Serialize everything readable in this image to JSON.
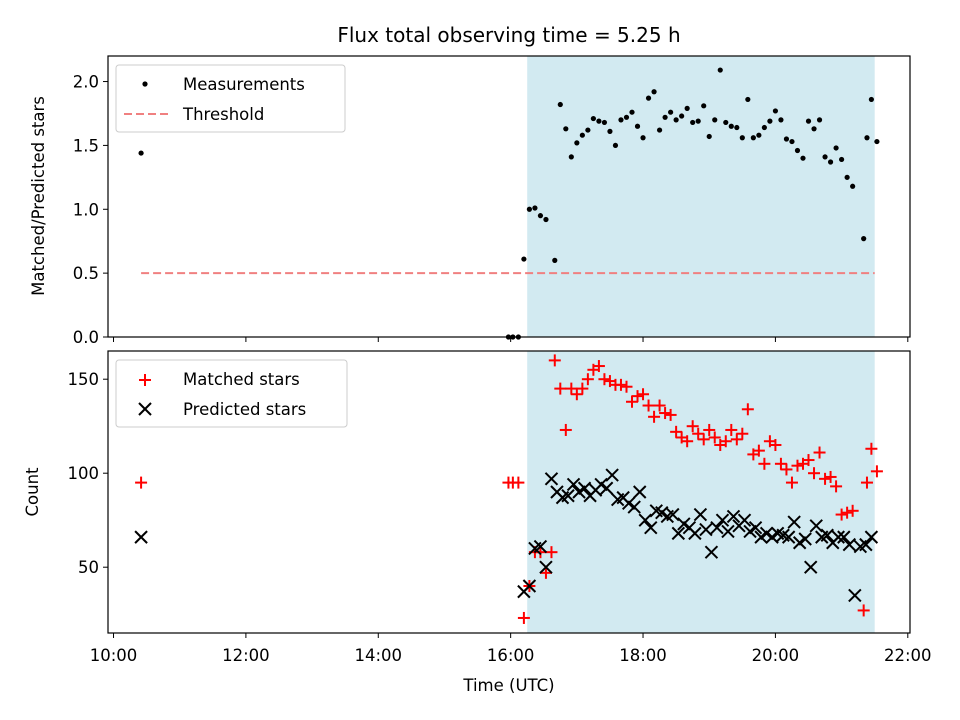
{
  "chart_data": {
    "title": "Flux total observing time = 5.25 h",
    "xlabel": "Time (UTC)",
    "x_tick_labels": [
      "10:00",
      "12:00",
      "14:00",
      "16:00",
      "18:00",
      "20:00",
      "22:00"
    ],
    "x_ticks": [
      "10:00",
      "12:00",
      "14:00",
      "16:00",
      "18:00",
      "20:00",
      "22:00"
    ],
    "xlim": [
      "09:55",
      "22:02"
    ],
    "observing_window": {
      "start": "16:15",
      "end": "21:30",
      "color": "#add8e6"
    },
    "panels": [
      {
        "type": "scatter",
        "ylabel": "Matched/Predicted stars",
        "ylim": [
          0,
          2.2
        ],
        "y_ticks": [
          "0.0",
          "0.5",
          "1.0",
          "1.5",
          "2.0"
        ],
        "legend": {
          "placement": "upper-left",
          "entries": [
            "Measurements",
            "Threshold"
          ]
        },
        "threshold": {
          "name": "Threshold",
          "value": 0.5,
          "from": "10:25",
          "to": "21:30",
          "color": "#f08080",
          "style": "dashed"
        },
        "series": [
          {
            "name": "Measurements",
            "color": "#000000",
            "marker": "dot",
            "points": [
              [
                "10:25",
                1.44
              ],
              [
                "15:58",
                0.0
              ],
              [
                "16:02",
                0.0
              ],
              [
                "16:07",
                0.0
              ],
              [
                "16:12",
                0.61
              ],
              [
                "16:17",
                1.0
              ],
              [
                "16:22",
                1.01
              ],
              [
                "16:27",
                0.95
              ],
              [
                "16:32",
                0.92
              ],
              [
                "16:40",
                0.6
              ],
              [
                "16:45",
                1.82
              ],
              [
                "16:50",
                1.63
              ],
              [
                "16:55",
                1.41
              ],
              [
                "17:00",
                1.52
              ],
              [
                "17:05",
                1.58
              ],
              [
                "17:10",
                1.62
              ],
              [
                "17:15",
                1.71
              ],
              [
                "17:20",
                1.69
              ],
              [
                "17:25",
                1.68
              ],
              [
                "17:30",
                1.61
              ],
              [
                "17:35",
                1.5
              ],
              [
                "17:40",
                1.7
              ],
              [
                "17:45",
                1.72
              ],
              [
                "17:50",
                1.76
              ],
              [
                "17:55",
                1.65
              ],
              [
                "18:00",
                1.56
              ],
              [
                "18:05",
                1.87
              ],
              [
                "18:10",
                1.92
              ],
              [
                "18:15",
                1.62
              ],
              [
                "18:20",
                1.72
              ],
              [
                "18:25",
                1.76
              ],
              [
                "18:30",
                1.7
              ],
              [
                "18:35",
                1.73
              ],
              [
                "18:40",
                1.79
              ],
              [
                "18:45",
                1.68
              ],
              [
                "18:50",
                1.69
              ],
              [
                "18:55",
                1.81
              ],
              [
                "19:00",
                1.57
              ],
              [
                "19:05",
                1.7
              ],
              [
                "19:10",
                2.09
              ],
              [
                "19:15",
                1.68
              ],
              [
                "19:20",
                1.65
              ],
              [
                "19:25",
                1.64
              ],
              [
                "19:30",
                1.56
              ],
              [
                "19:35",
                1.86
              ],
              [
                "19:40",
                1.56
              ],
              [
                "19:45",
                1.58
              ],
              [
                "19:50",
                1.64
              ],
              [
                "19:55",
                1.69
              ],
              [
                "20:00",
                1.77
              ],
              [
                "20:05",
                1.7
              ],
              [
                "20:10",
                1.55
              ],
              [
                "20:15",
                1.53
              ],
              [
                "20:20",
                1.46
              ],
              [
                "20:25",
                1.4
              ],
              [
                "20:30",
                1.69
              ],
              [
                "20:35",
                1.63
              ],
              [
                "20:40",
                1.7
              ],
              [
                "20:45",
                1.41
              ],
              [
                "20:50",
                1.37
              ],
              [
                "20:55",
                1.48
              ],
              [
                "21:00",
                1.39
              ],
              [
                "21:05",
                1.25
              ],
              [
                "21:10",
                1.18
              ],
              [
                "21:20",
                0.77
              ],
              [
                "21:23",
                1.56
              ],
              [
                "21:27",
                1.86
              ],
              [
                "21:32",
                1.53
              ]
            ]
          }
        ]
      },
      {
        "type": "scatter",
        "ylabel": "Count",
        "ylim": [
          15,
          165
        ],
        "y_ticks": [
          "50",
          "100",
          "150"
        ],
        "legend": {
          "placement": "upper-left",
          "entries": [
            "Matched stars",
            "Predicted stars"
          ]
        },
        "series": [
          {
            "name": "Matched stars",
            "color": "#ff0000",
            "marker": "plus",
            "points": [
              [
                "10:25",
                95
              ],
              [
                "15:58",
                95
              ],
              [
                "16:02",
                95
              ],
              [
                "16:07",
                95
              ],
              [
                "16:12",
                23
              ],
              [
                "16:17",
                40
              ],
              [
                "16:22",
                58
              ],
              [
                "16:27",
                58
              ],
              [
                "16:32",
                47
              ],
              [
                "16:37",
                58
              ],
              [
                "16:40",
                160
              ],
              [
                "16:45",
                145
              ],
              [
                "16:50",
                123
              ],
              [
                "16:55",
                145
              ],
              [
                "17:00",
                142
              ],
              [
                "17:05",
                145
              ],
              [
                "17:10",
                150
              ],
              [
                "17:15",
                155
              ],
              [
                "17:20",
                157
              ],
              [
                "17:25",
                150
              ],
              [
                "17:30",
                149
              ],
              [
                "17:35",
                147
              ],
              [
                "17:40",
                147
              ],
              [
                "17:45",
                146
              ],
              [
                "17:50",
                138
              ],
              [
                "17:55",
                141
              ],
              [
                "18:00",
                142
              ],
              [
                "18:05",
                136
              ],
              [
                "18:10",
                130
              ],
              [
                "18:15",
                136
              ],
              [
                "18:20",
                132
              ],
              [
                "18:25",
                131
              ],
              [
                "18:30",
                122
              ],
              [
                "18:35",
                119
              ],
              [
                "18:40",
                117
              ],
              [
                "18:45",
                125
              ],
              [
                "18:50",
                121
              ],
              [
                "18:55",
                118
              ],
              [
                "19:00",
                123
              ],
              [
                "19:05",
                119
              ],
              [
                "19:10",
                115
              ],
              [
                "19:15",
                117
              ],
              [
                "19:20",
                123
              ],
              [
                "19:25",
                118
              ],
              [
                "19:30",
                121
              ],
              [
                "19:35",
                134
              ],
              [
                "19:40",
                110
              ],
              [
                "19:45",
                112
              ],
              [
                "19:50",
                105
              ],
              [
                "19:55",
                117
              ],
              [
                "20:00",
                115
              ],
              [
                "20:05",
                105
              ],
              [
                "20:10",
                102
              ],
              [
                "20:15",
                95
              ],
              [
                "20:20",
                104
              ],
              [
                "20:25",
                105
              ],
              [
                "20:30",
                107
              ],
              [
                "20:35",
                100
              ],
              [
                "20:40",
                111
              ],
              [
                "20:45",
                97
              ],
              [
                "20:50",
                98
              ],
              [
                "20:55",
                93
              ],
              [
                "21:00",
                78
              ],
              [
                "21:05",
                79
              ],
              [
                "21:10",
                80
              ],
              [
                "21:20",
                27
              ],
              [
                "21:23",
                95
              ],
              [
                "21:27",
                113
              ],
              [
                "21:32",
                101
              ]
            ]
          },
          {
            "name": "Predicted stars",
            "color": "#000000",
            "marker": "x",
            "points": [
              [
                "10:25",
                66
              ],
              [
                "16:12",
                37
              ],
              [
                "16:17",
                40
              ],
              [
                "16:22",
                60
              ],
              [
                "16:27",
                61
              ],
              [
                "16:32",
                50
              ],
              [
                "16:37",
                97
              ],
              [
                "16:42",
                90
              ],
              [
                "16:47",
                87
              ],
              [
                "16:52",
                88
              ],
              [
                "16:57",
                94
              ],
              [
                "17:02",
                90
              ],
              [
                "17:07",
                92
              ],
              [
                "17:12",
                88
              ],
              [
                "17:17",
                91
              ],
              [
                "17:22",
                94
              ],
              [
                "17:27",
                92
              ],
              [
                "17:32",
                99
              ],
              [
                "17:37",
                86
              ],
              [
                "17:42",
                87
              ],
              [
                "17:47",
                84
              ],
              [
                "17:52",
                82
              ],
              [
                "17:57",
                90
              ],
              [
                "18:02",
                75
              ],
              [
                "18:07",
                71
              ],
              [
                "18:12",
                80
              ],
              [
                "18:17",
                79
              ],
              [
                "18:22",
                77
              ],
              [
                "18:27",
                78
              ],
              [
                "18:32",
                68
              ],
              [
                "18:37",
                73
              ],
              [
                "18:42",
                71
              ],
              [
                "18:47",
                68
              ],
              [
                "18:52",
                78
              ],
              [
                "18:57",
                70
              ],
              [
                "19:02",
                58
              ],
              [
                "19:07",
                71
              ],
              [
                "19:12",
                75
              ],
              [
                "19:17",
                69
              ],
              [
                "19:22",
                77
              ],
              [
                "19:27",
                72
              ],
              [
                "19:32",
                75
              ],
              [
                "19:37",
                69
              ],
              [
                "19:42",
                71
              ],
              [
                "19:47",
                66
              ],
              [
                "19:52",
                68
              ],
              [
                "19:57",
                66
              ],
              [
                "20:02",
                68
              ],
              [
                "20:07",
                67
              ],
              [
                "20:12",
                66
              ],
              [
                "20:17",
                74
              ],
              [
                "20:22",
                63
              ],
              [
                "20:27",
                65
              ],
              [
                "20:32",
                50
              ],
              [
                "20:37",
                72
              ],
              [
                "20:42",
                66
              ],
              [
                "20:47",
                67
              ],
              [
                "20:52",
                63
              ],
              [
                "20:57",
                66
              ],
              [
                "21:02",
                66
              ],
              [
                "21:07",
                62
              ],
              [
                "21:12",
                35
              ],
              [
                "21:17",
                61
              ],
              [
                "21:22",
                62
              ],
              [
                "21:27",
                66
              ]
            ]
          }
        ]
      }
    ]
  }
}
